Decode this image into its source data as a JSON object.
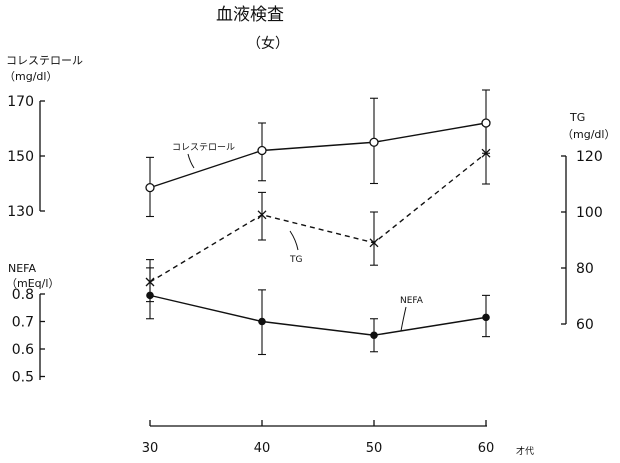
{
  "chart_data": {
    "type": "line",
    "title": "血液検査",
    "subtitle": "（女）",
    "x_axis": {
      "label": "才代",
      "categories": [
        30,
        40,
        50,
        60
      ],
      "tick_labels": [
        "30",
        "40",
        "50",
        "60"
      ]
    },
    "axes": {
      "cholesterol": {
        "label": "コレステロール",
        "unit": "（mg/dl）",
        "side": "left",
        "ticks": [
          170,
          150,
          130
        ],
        "tick_labels": [
          "170",
          "150",
          "130"
        ]
      },
      "tg": {
        "label": "TG",
        "unit": "（mg/dl）",
        "side": "right",
        "ticks": [
          120,
          100,
          80,
          60
        ],
        "tick_labels": [
          "120",
          "100",
          "80",
          "60"
        ]
      },
      "nefa": {
        "label": "NEFA",
        "unit": "（mEq/l）",
        "side": "left",
        "ticks": [
          0.8,
          0.7,
          0.6,
          0.5
        ],
        "tick_labels": [
          "0.8",
          "0.7",
          "0.6",
          "0.5"
        ]
      }
    },
    "series": [
      {
        "name": "コレステロール",
        "axis": "cholesterol",
        "marker": "open-circle",
        "line": "solid",
        "x": [
          30,
          40,
          50,
          60
        ],
        "values": [
          138.5,
          152,
          155,
          162
        ],
        "error_low": [
          128,
          141,
          140,
          151
        ],
        "error_high": [
          149.5,
          162,
          171,
          174
        ]
      },
      {
        "name": "TG",
        "axis": "tg",
        "marker": "cross",
        "line": "dashed",
        "x": [
          30,
          40,
          50,
          60
        ],
        "values": [
          75,
          99,
          89,
          121
        ],
        "error_low": [
          68,
          90,
          81,
          110
        ],
        "error_high": [
          83,
          107,
          100,
          131
        ]
      },
      {
        "name": "NEFA",
        "axis": "nefa",
        "marker": "filled-circle",
        "line": "solid",
        "x": [
          30,
          40,
          50,
          60
        ],
        "values": [
          0.795,
          0.7,
          0.65,
          0.715
        ],
        "error_low": [
          0.71,
          0.58,
          0.59,
          0.645
        ],
        "error_high": [
          0.895,
          0.815,
          0.71,
          0.795
        ]
      }
    ],
    "annotations": [
      "コレステロール",
      "TG",
      "NEFA"
    ]
  }
}
